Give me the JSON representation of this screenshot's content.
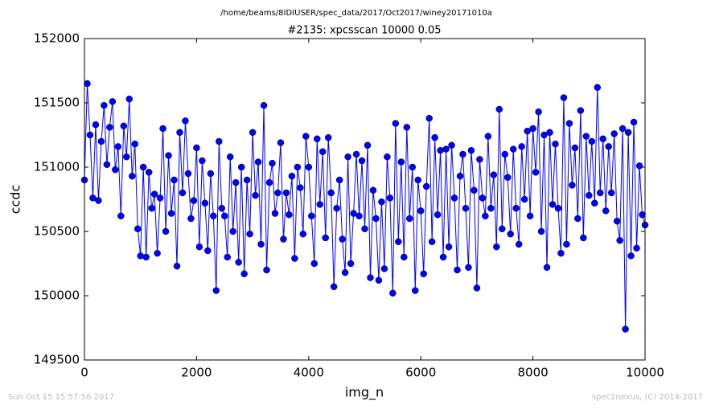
{
  "chart_data": {
    "type": "line",
    "suptitle": "/home/beams/8IDIUSER/spec_data/2017/Oct2017/winey20171010a",
    "title": "#2135: xpcsscan 10000 0.05",
    "xlabel": "img_n",
    "ylabel": "ccdc",
    "footer_left": "Sun Oct 15 15:57:56 2017",
    "footer_right": "spec2nexus, (C) 2014-2017",
    "xlim": [
      0,
      10000
    ],
    "xticks": [
      0,
      2000,
      4000,
      6000,
      8000,
      10000
    ],
    "ylim": [
      149500,
      152000
    ],
    "yticks": [
      149500,
      150000,
      150500,
      151000,
      151500,
      152000
    ],
    "color": "#0000ff",
    "x": [
      0,
      50,
      100,
      150,
      200,
      250,
      300,
      350,
      400,
      450,
      500,
      550,
      600,
      650,
      700,
      750,
      800,
      850,
      900,
      950,
      1000,
      1050,
      1100,
      1150,
      1200,
      1250,
      1300,
      1350,
      1400,
      1450,
      1500,
      1550,
      1600,
      1650,
      1700,
      1750,
      1800,
      1850,
      1900,
      1950,
      2000,
      2050,
      2100,
      2150,
      2200,
      2250,
      2300,
      2350,
      2400,
      2450,
      2500,
      2550,
      2600,
      2650,
      2700,
      2750,
      2800,
      2850,
      2900,
      2950,
      3000,
      3050,
      3100,
      3150,
      3200,
      3250,
      3300,
      3350,
      3400,
      3450,
      3500,
      3550,
      3600,
      3650,
      3700,
      3750,
      3800,
      3850,
      3900,
      3950,
      4000,
      4050,
      4100,
      4150,
      4200,
      4250,
      4300,
      4350,
      4400,
      4450,
      4500,
      4550,
      4600,
      4650,
      4700,
      4750,
      4800,
      4850,
      4900,
      4950,
      5000,
      5050,
      5100,
      5150,
      5200,
      5250,
      5300,
      5350,
      5400,
      5450,
      5500,
      5550,
      5600,
      5650,
      5700,
      5750,
      5800,
      5850,
      5900,
      5950,
      6000,
      6050,
      6100,
      6150,
      6200,
      6250,
      6300,
      6350,
      6400,
      6450,
      6500,
      6550,
      6600,
      6650,
      6700,
      6750,
      6800,
      6850,
      6900,
      6950,
      7000,
      7050,
      7100,
      7150,
      7200,
      7250,
      7300,
      7350,
      7400,
      7450,
      7500,
      7550,
      7600,
      7650,
      7700,
      7750,
      7800,
      7850,
      7900,
      7950,
      8000,
      8050,
      8100,
      8150,
      8200,
      8250,
      8300,
      8350,
      8400,
      8450,
      8500,
      8550,
      8600,
      8650,
      8700,
      8750,
      8800,
      8850,
      8900,
      8950,
      9000,
      9050,
      9100,
      9150,
      9200,
      9250,
      9300,
      9350,
      9400,
      9450,
      9500,
      9550,
      9600,
      9650,
      9700,
      9750,
      9800,
      9850,
      9900,
      9950,
      10000
    ],
    "values": [
      150900,
      151650,
      151250,
      150760,
      151330,
      150740,
      151200,
      151480,
      151020,
      151310,
      151510,
      150980,
      151160,
      150620,
      151320,
      151080,
      151530,
      150930,
      151180,
      150520,
      150310,
      151000,
      150300,
      150960,
      150680,
      150790,
      150330,
      150760,
      151300,
      150500,
      151090,
      150640,
      150900,
      150230,
      151270,
      150800,
      151360,
      150950,
      150600,
      150740,
      151150,
      150380,
      151050,
      150720,
      150350,
      150950,
      150620,
      150040,
      151200,
      150680,
      150620,
      150300,
      151080,
      150500,
      150880,
      150260,
      151000,
      150170,
      150900,
      150480,
      151270,
      150780,
      151040,
      150400,
      151480,
      150200,
      150880,
      151030,
      150640,
      150800,
      151190,
      150440,
      150800,
      150630,
      150930,
      150290,
      151000,
      150840,
      150480,
      151240,
      151000,
      150620,
      150250,
      151220,
      150710,
      151120,
      150450,
      151230,
      150800,
      150070,
      150680,
      150900,
      150440,
      150180,
      151080,
      150250,
      150640,
      151100,
      150620,
      151050,
      150520,
      151170,
      150140,
      150820,
      150600,
      150120,
      150730,
      150210,
      151080,
      150760,
      150020,
      151340,
      150420,
      151040,
      150300,
      151310,
      150600,
      151000,
      150040,
      150900,
      150660,
      150170,
      150850,
      151380,
      150420,
      151230,
      150630,
      151130,
      150300,
      151140,
      150380,
      151170,
      150760,
      150200,
      150930,
      151100,
      150680,
      150220,
      151130,
      150820,
      150060,
      151060,
      150760,
      150620,
      151240,
      150680,
      150940,
      150380,
      151450,
      150520,
      151100,
      150920,
      150480,
      151140,
      150680,
      150400,
      151160,
      150750,
      151280,
      150620,
      151300,
      150960,
      151430,
      150500,
      151250,
      150220,
      151270,
      150710,
      151180,
      150680,
      150330,
      151540,
      150400,
      151340,
      150860,
      151150,
      150600,
      151440,
      150450,
      151240,
      150780,
      151200,
      150720,
      151620,
      150800,
      151220,
      150660,
      151160,
      150800,
      151260,
      150580,
      150430,
      151300,
      149740,
      151270,
      150310,
      151350,
      150370,
      151010,
      150630,
      150550
    ]
  }
}
